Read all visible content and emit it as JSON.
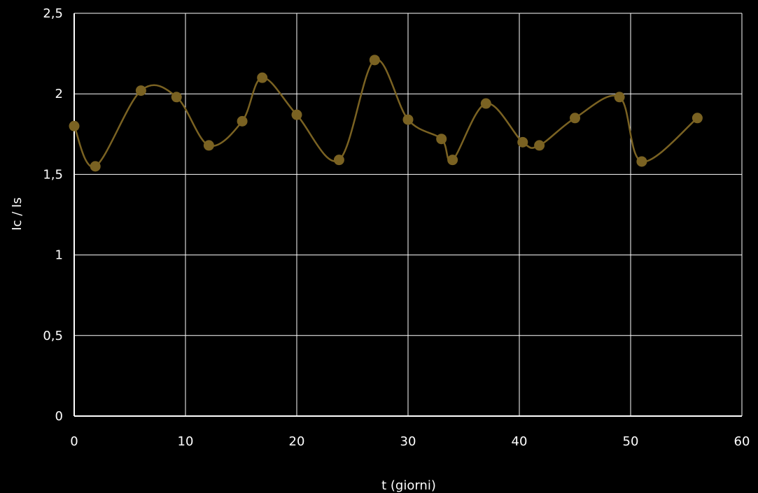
{
  "chart_data": {
    "type": "scatter",
    "xlabel": "t (giorni)",
    "ylabel": "Ic / Is",
    "xlim": [
      0,
      60
    ],
    "ylim": [
      0,
      2.5
    ],
    "x_ticks": [
      0,
      10,
      20,
      30,
      40,
      50,
      60
    ],
    "y_ticks": [
      0,
      0.5,
      1,
      1.5,
      2,
      2.5
    ],
    "x_tick_labels": [
      "0",
      "10",
      "20",
      "30",
      "40",
      "50",
      "60"
    ],
    "y_tick_labels": [
      "0",
      "0,5",
      "1",
      "1,5",
      "2",
      "2,5"
    ],
    "grid": true,
    "smoothed_line": true,
    "series": [
      {
        "x": [
          0,
          1.9,
          6,
          9.2,
          12.1,
          15.1,
          16.9,
          20,
          23.8,
          27,
          30,
          33,
          34,
          37,
          40.3,
          41.8,
          45,
          49,
          51,
          56
        ],
        "y": [
          1.8,
          1.55,
          2.02,
          1.98,
          1.68,
          1.83,
          2.1,
          1.87,
          1.59,
          2.21,
          1.84,
          1.72,
          1.59,
          1.94,
          1.7,
          1.68,
          1.85,
          1.98,
          1.58,
          1.85
        ]
      }
    ],
    "colors": {
      "background": "#000000",
      "series": "#7a6222",
      "grid": "#ffffff",
      "text": "#ffffff"
    }
  }
}
